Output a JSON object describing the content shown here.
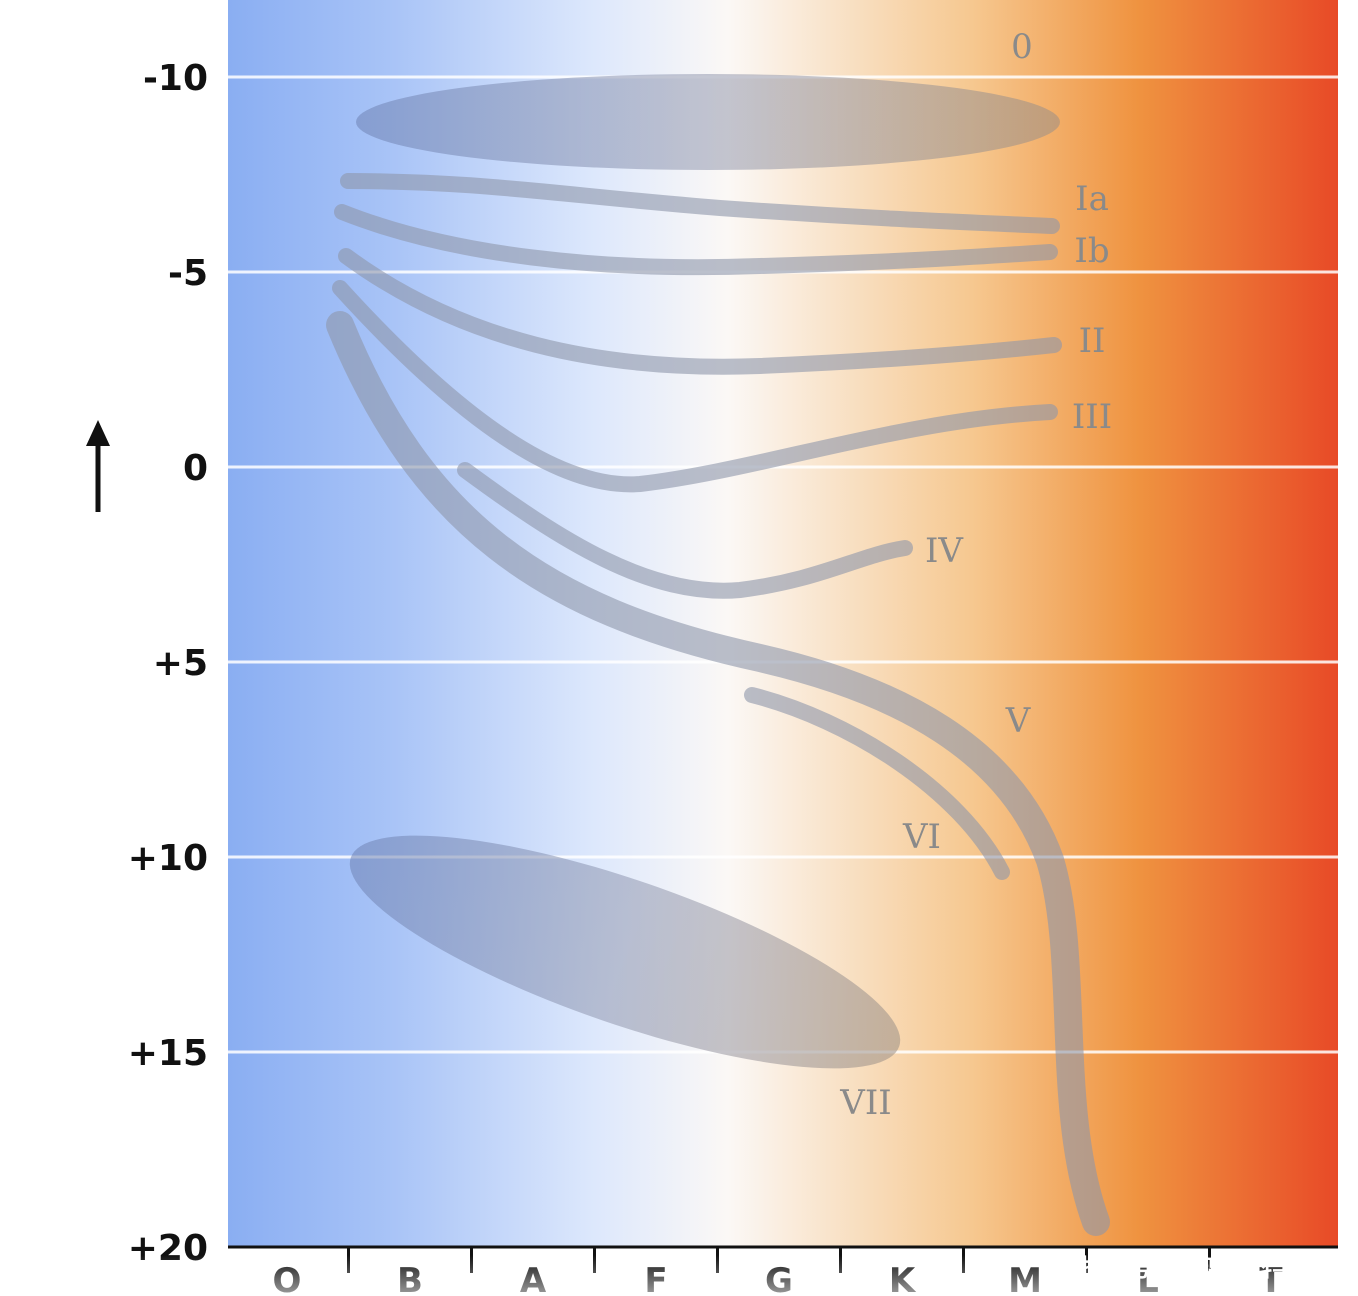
{
  "chart_data": {
    "type": "diagram",
    "y_axis": {
      "ticks": [
        "-10",
        "-5",
        "0",
        "+5",
        "+10",
        "+15",
        "+20"
      ],
      "values": [
        -10,
        -5,
        0,
        5,
        10,
        15,
        20
      ],
      "range": [
        -12,
        20
      ],
      "inverted": true,
      "arrow": "↑",
      "grid": true
    },
    "x_axis": {
      "categories": [
        "O",
        "B",
        "A",
        "F",
        "G",
        "K",
        "M",
        "L",
        "T"
      ]
    },
    "luminosity_classes": [
      {
        "label": "0",
        "kind": "band"
      },
      {
        "label": "Ia",
        "kind": "curve"
      },
      {
        "label": "Ib",
        "kind": "curve"
      },
      {
        "label": "II",
        "kind": "curve"
      },
      {
        "label": "III",
        "kind": "curve"
      },
      {
        "label": "IV",
        "kind": "curve"
      },
      {
        "label": "V",
        "kind": "curve"
      },
      {
        "label": "VI",
        "kind": "curve"
      },
      {
        "label": "VII",
        "kind": "band"
      }
    ],
    "background_gradient": [
      "#8aaef2",
      "#a9c4f7",
      "#dde8fc",
      "#fbf8f6",
      "#f6c890",
      "#ef9340",
      "#e84a27"
    ]
  },
  "watermark": "搜狐号@琉璃聊科学"
}
